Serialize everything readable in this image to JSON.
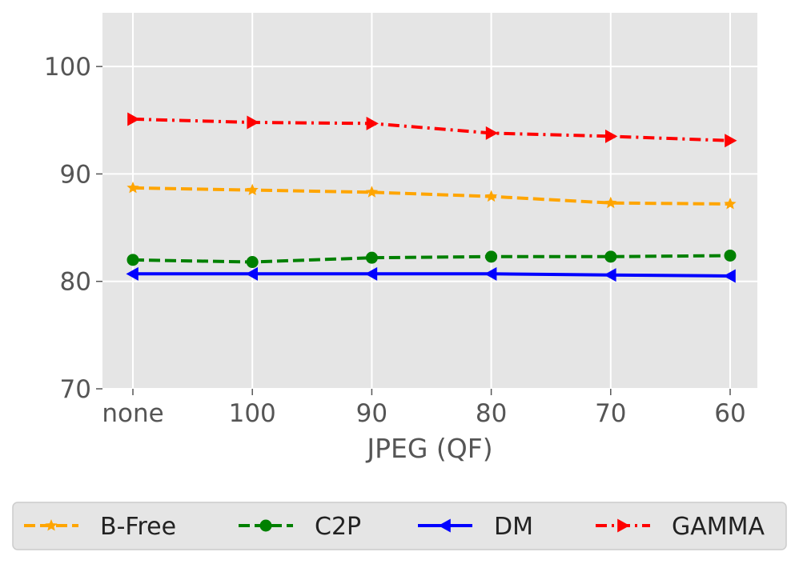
{
  "chart_data": {
    "type": "line",
    "title": "",
    "xlabel": "JPEG (QF)",
    "ylabel": "",
    "categories": [
      "none",
      "100",
      "90",
      "80",
      "70",
      "60"
    ],
    "ylim": [
      70,
      105
    ],
    "yticks": [
      70,
      80,
      90,
      100
    ],
    "grid": true,
    "legend": "bottom-outside",
    "series": [
      {
        "name": "B-Free",
        "values": [
          88.7,
          88.5,
          88.3,
          87.9,
          87.3,
          87.2
        ],
        "color": "#ffa500",
        "dash": "dashed",
        "marker": "star"
      },
      {
        "name": "C2P",
        "values": [
          82.0,
          81.8,
          82.2,
          82.3,
          82.3,
          82.4
        ],
        "color": "#008000",
        "dash": "dashed",
        "marker": "circle"
      },
      {
        "name": "DM",
        "values": [
          80.7,
          80.7,
          80.7,
          80.7,
          80.6,
          80.5
        ],
        "color": "#0000ff",
        "dash": "solid",
        "marker": "triangle-left"
      },
      {
        "name": "GAMMA",
        "values": [
          95.1,
          94.8,
          94.7,
          93.8,
          93.5,
          93.1
        ],
        "color": "#ff0000",
        "dash": "dashdot",
        "marker": "triangle-right"
      }
    ]
  }
}
